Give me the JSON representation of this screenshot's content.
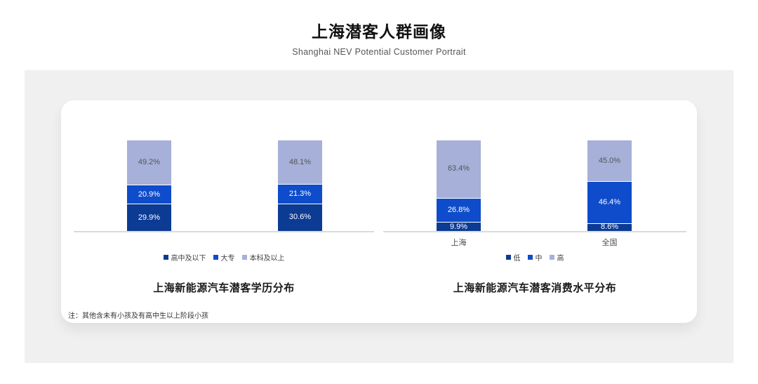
{
  "header": {
    "title": "上海潜客人群画像",
    "subtitle": "Shanghai NEV Potential Customer Portrait"
  },
  "note": "注：其他含未有小孩及有高中生以上阶段小孩",
  "colors": {
    "background_panel": "#F0F0F0",
    "card": "#FFFFFF",
    "axis_line": "#DBDBDB",
    "series_dark_blue": "#0C3B94",
    "series_bright_blue": "#0E4CCB",
    "series_light_blue": "#A6B0D9",
    "label_on_blue": "#FFFFFF",
    "label_on_light": "#555555"
  },
  "chart_data": [
    {
      "type": "bar",
      "stacked": true,
      "title": "上海新能源汽车潜客学历分布",
      "categories": [
        "",
        ""
      ],
      "series": [
        {
          "name": "高中及以下",
          "values": [
            29.9,
            30.6
          ],
          "color": "#0C3B94",
          "label_color": "#FFFFFF"
        },
        {
          "name": "大专",
          "values": [
            20.9,
            21.3
          ],
          "color": "#0E4CCB",
          "label_color": "#FFFFFF"
        },
        {
          "name": "本科及以上",
          "values": [
            49.2,
            48.1
          ],
          "color": "#A6B0D9",
          "label_color": "#555555"
        }
      ],
      "ylim": [
        0,
        100
      ],
      "value_suffix": "%",
      "grid": false,
      "legend_position": "bottom"
    },
    {
      "type": "bar",
      "stacked": true,
      "title": "上海新能源汽车潜客消费水平分布",
      "categories": [
        "上海",
        "全国"
      ],
      "series": [
        {
          "name": "低",
          "values": [
            9.9,
            8.6
          ],
          "color": "#0C3B94",
          "label_color": "#FFFFFF"
        },
        {
          "name": "中",
          "values": [
            26.8,
            46.4
          ],
          "color": "#0E4CCB",
          "label_color": "#FFFFFF"
        },
        {
          "name": "高",
          "values": [
            63.4,
            45.0
          ],
          "color": "#A6B0D9",
          "label_color": "#555555"
        }
      ],
      "ylim": [
        0,
        100
      ],
      "value_suffix": "%",
      "grid": false,
      "legend_position": "bottom"
    }
  ]
}
